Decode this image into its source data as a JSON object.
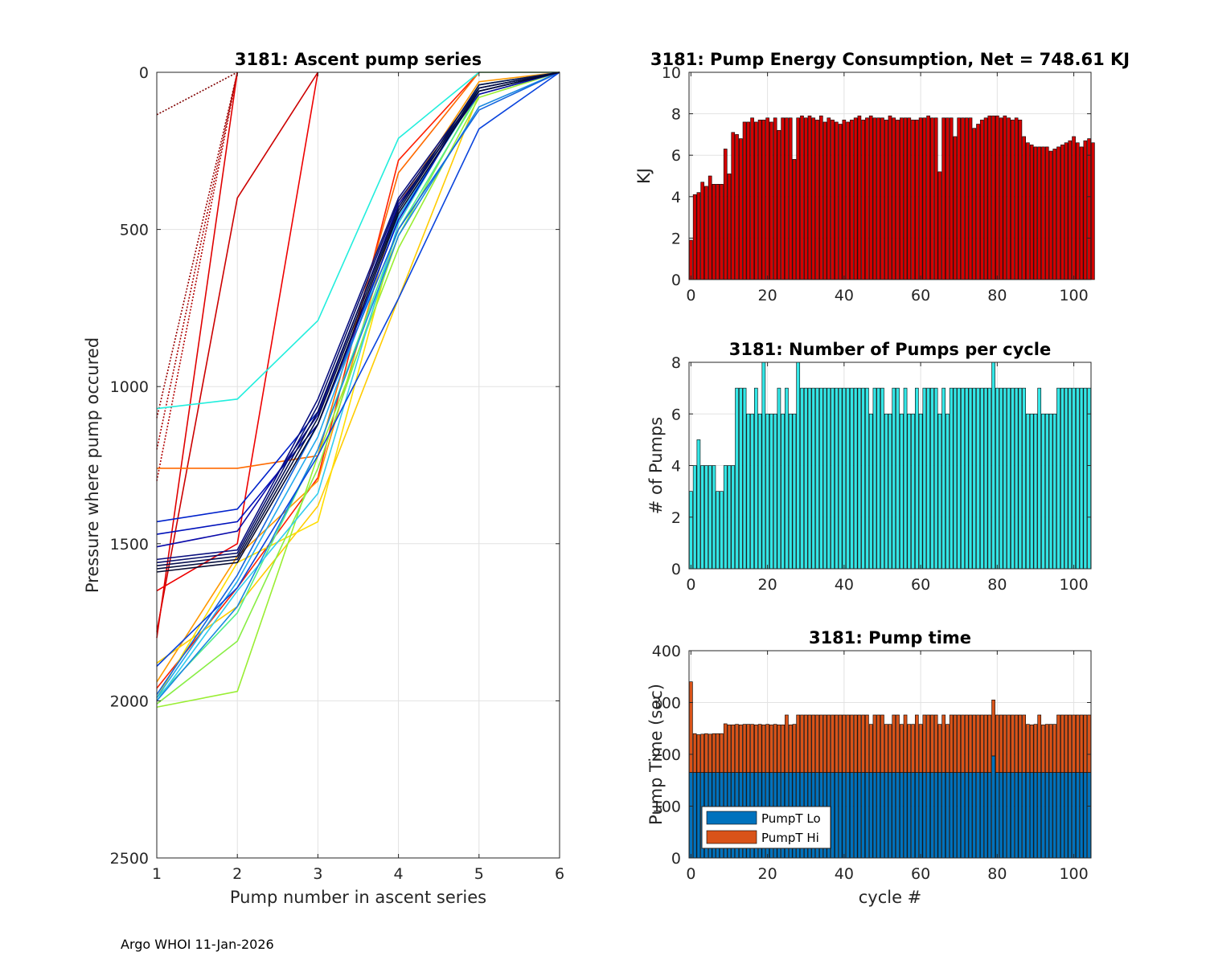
{
  "footer": "Argo WHOI 11-Jan-2026",
  "chart_data": [
    {
      "type": "line",
      "title": "3181: Ascent pump series",
      "xlabel": "Pump number in ascent series",
      "ylabel": "Pressure where pump occured",
      "xlim": [
        1,
        6
      ],
      "ylim": [
        0,
        2500
      ],
      "y_reversed": true,
      "xticks": [
        "1",
        "2",
        "3",
        "4",
        "5",
        "6"
      ],
      "yticks": [
        "0",
        "500",
        "1000",
        "1500",
        "2000",
        "2500"
      ],
      "series_description": "One line per cycle (~105 cycles), colored by cycle from dark red (early) through orange, yellow, green, cyan to dark blue (late); dotted segments where pump is at/near surface",
      "series": [
        {
          "name": "cycle 0",
          "color": "#800000",
          "values": [
            135,
            0,
            null,
            null,
            null,
            null
          ],
          "style": "dotted"
        },
        {
          "name": "cycle 1",
          "color": "#990000",
          "values": [
            1100,
            0,
            null,
            null,
            null,
            null
          ],
          "style": "dotted"
        },
        {
          "name": "cycle 2",
          "color": "#aa0000",
          "values": [
            1200,
            0,
            null,
            null,
            null,
            null
          ],
          "style": "dotted"
        },
        {
          "name": "cycle 3",
          "color": "#b30000",
          "values": [
            1300,
            0,
            null,
            null,
            null,
            null
          ],
          "style": "dotted"
        },
        {
          "name": "cycle 4",
          "color": "#cc0000",
          "values": [
            1780,
            400,
            0,
            null,
            null,
            null
          ],
          "style": "solid"
        },
        {
          "name": "cycle 5",
          "color": "#e00000",
          "values": [
            1800,
            0,
            null,
            null,
            null,
            null
          ],
          "style": "solid"
        },
        {
          "name": "cycle 6",
          "color": "#ee0000",
          "values": [
            1650,
            1500,
            0,
            null,
            null,
            null
          ],
          "style": "solid"
        },
        {
          "name": "cycle 8",
          "color": "#ff2000",
          "values": [
            1960,
            1640,
            1290,
            280,
            0,
            0
          ],
          "style": "solid"
        },
        {
          "name": "cycle 10",
          "color": "#ff6a00",
          "values": [
            1260,
            1260,
            1220,
            320,
            0,
            0
          ],
          "style": "solid"
        },
        {
          "name": "cycle 12",
          "color": "#ff9900",
          "values": [
            1940,
            1540,
            1300,
            420,
            30,
            0
          ],
          "style": "solid"
        },
        {
          "name": "cycle 14",
          "color": "#ffcc00",
          "values": [
            1880,
            1700,
            1380,
            720,
            70,
            0
          ],
          "style": "solid"
        },
        {
          "name": "cycle 16",
          "color": "#ffdd00",
          "values": [
            1990,
            1560,
            1430,
            480,
            40,
            0
          ],
          "style": "solid"
        },
        {
          "name": "cycle 18",
          "color": "#99ee33",
          "values": [
            2020,
            1970,
            1220,
            560,
            80,
            0
          ],
          "style": "solid"
        },
        {
          "name": "cycle 20",
          "color": "#88ee44",
          "values": [
            2010,
            1810,
            1260,
            520,
            60,
            0
          ],
          "style": "solid"
        },
        {
          "name": "cycle 22",
          "color": "#55ee88",
          "values": [
            1990,
            1720,
            1200,
            500,
            70,
            0
          ],
          "style": "solid"
        },
        {
          "name": "cycle 26",
          "color": "#22eedd",
          "values": [
            1070,
            1040,
            790,
            210,
            0,
            0
          ],
          "style": "solid"
        },
        {
          "name": "cycle 30",
          "color": "#33ccee",
          "values": [
            2000,
            1650,
            1340,
            480,
            40,
            0
          ],
          "style": "solid"
        },
        {
          "name": "cycle 36",
          "color": "#22aaee",
          "values": [
            1990,
            1620,
            1160,
            460,
            60,
            0
          ],
          "style": "solid"
        },
        {
          "name": "cycle 42",
          "color": "#1a88e0",
          "values": [
            2000,
            1700,
            1200,
            520,
            110,
            0
          ],
          "style": "solid"
        },
        {
          "name": "cycle 48",
          "color": "#1466dd",
          "values": [
            1980,
            1600,
            1120,
            500,
            120,
            0
          ],
          "style": "solid"
        },
        {
          "name": "cycle 54",
          "color": "#0a44dd",
          "values": [
            1890,
            1640,
            1220,
            720,
            180,
            0
          ],
          "style": "solid"
        },
        {
          "name": "cycle 60",
          "color": "#0022cc",
          "values": [
            1430,
            1390,
            1080,
            430,
            60,
            0
          ],
          "style": "solid"
        },
        {
          "name": "cycle 66",
          "color": "#0011bb",
          "values": [
            1470,
            1430,
            1120,
            470,
            50,
            0
          ],
          "style": "solid"
        },
        {
          "name": "cycle 72",
          "color": "#0a0aaa",
          "values": [
            1510,
            1460,
            1090,
            420,
            70,
            0
          ],
          "style": "solid"
        },
        {
          "name": "cycle 78",
          "color": "#0a1080",
          "values": [
            1550,
            1520,
            1040,
            400,
            50,
            0
          ],
          "style": "solid"
        },
        {
          "name": "cycle 84",
          "color": "#08106a",
          "values": [
            1560,
            1530,
            1060,
            410,
            60,
            0
          ],
          "style": "solid"
        },
        {
          "name": "cycle 90",
          "color": "#071050",
          "values": [
            1570,
            1540,
            1080,
            430,
            40,
            0
          ],
          "style": "solid"
        },
        {
          "name": "cycle 96",
          "color": "#061040",
          "values": [
            1580,
            1550,
            1100,
            440,
            50,
            0
          ],
          "style": "solid"
        },
        {
          "name": "cycle 102",
          "color": "#050a30",
          "values": [
            1590,
            1560,
            1120,
            450,
            60,
            0
          ],
          "style": "solid"
        }
      ]
    },
    {
      "type": "bar",
      "title": "3181: Pump Energy Consumption,  Net = 748.61 KJ",
      "xlabel": "",
      "ylabel": "KJ",
      "xlim": [
        -0.5,
        104.5
      ],
      "ylim": [
        0,
        10
      ],
      "xticks": [
        "0",
        "20",
        "40",
        "60",
        "80",
        "100"
      ],
      "yticks": [
        "0",
        "2",
        "4",
        "6",
        "8",
        "10"
      ],
      "bar_color": "#d40000",
      "x_start": 0,
      "values": [
        1.9,
        4.1,
        4.2,
        4.7,
        4.5,
        5.0,
        4.6,
        4.6,
        4.6,
        6.3,
        5.1,
        7.1,
        7.0,
        6.8,
        7.6,
        7.6,
        7.8,
        7.6,
        7.7,
        7.7,
        7.8,
        7.6,
        7.8,
        7.2,
        7.8,
        7.8,
        7.8,
        5.8,
        7.8,
        7.9,
        7.8,
        7.9,
        7.8,
        7.7,
        7.9,
        7.6,
        7.8,
        7.7,
        7.6,
        7.5,
        7.7,
        7.6,
        7.7,
        7.8,
        7.9,
        7.7,
        7.8,
        7.9,
        7.8,
        7.8,
        7.8,
        7.7,
        7.9,
        7.8,
        7.7,
        7.8,
        7.8,
        7.8,
        7.7,
        7.7,
        7.8,
        7.8,
        7.9,
        7.8,
        7.8,
        5.2,
        7.8,
        7.8,
        7.8,
        6.9,
        7.8,
        7.8,
        7.8,
        7.8,
        7.3,
        7.5,
        7.7,
        7.8,
        7.9,
        7.9,
        7.9,
        7.8,
        7.9,
        7.8,
        7.7,
        7.8,
        7.7,
        6.9,
        6.6,
        6.5,
        6.4,
        6.4,
        6.4,
        6.4,
        6.2,
        6.3,
        6.4,
        6.5,
        6.6,
        6.7,
        6.9,
        6.6,
        6.4,
        6.7,
        6.8,
        6.6
      ]
    },
    {
      "type": "bar",
      "title": "3181: Number of Pumps per cycle",
      "xlabel": "",
      "ylabel": "# of Pumps",
      "xlim": [
        -0.5,
        104.5
      ],
      "ylim": [
        0,
        8
      ],
      "xticks": [
        "0",
        "20",
        "40",
        "60",
        "80",
        "100"
      ],
      "yticks": [
        "0",
        "2",
        "4",
        "6",
        "8"
      ],
      "bar_color": "#33e6e6",
      "x_start": 0,
      "values": [
        3,
        4,
        5,
        4,
        4,
        4,
        4,
        3,
        3,
        4,
        4,
        4,
        7,
        7,
        7,
        6,
        6,
        7,
        6,
        8,
        6,
        6,
        6,
        7,
        6,
        7,
        6,
        6,
        8,
        7,
        7,
        7,
        7,
        7,
        7,
        7,
        7,
        7,
        7,
        7,
        7,
        7,
        7,
        7,
        7,
        7,
        7,
        6,
        7,
        7,
        7,
        6,
        6,
        7,
        7,
        6,
        7,
        6,
        6,
        7,
        6,
        7,
        7,
        7,
        7,
        6,
        7,
        6,
        7,
        7,
        7,
        7,
        7,
        7,
        7,
        7,
        7,
        7,
        7,
        8,
        7,
        7,
        7,
        7,
        7,
        7,
        7,
        7,
        6,
        6,
        6,
        7,
        6,
        6,
        6,
        6,
        7,
        7,
        7,
        7,
        7,
        7,
        7,
        7,
        7
      ]
    },
    {
      "type": "bar",
      "title": "3181: Pump time",
      "xlabel": "cycle #",
      "ylabel": "Pump Time (sec)",
      "xlim": [
        -0.5,
        104.5
      ],
      "ylim": [
        0,
        400
      ],
      "xticks": [
        "0",
        "20",
        "40",
        "60",
        "80",
        "100"
      ],
      "yticks": [
        "0",
        "100",
        "200",
        "300",
        "400"
      ],
      "stacked": true,
      "legend_position": "bottom-left",
      "x_start": 0,
      "series": [
        {
          "name": "PumpT Lo",
          "color": "#0072bd",
          "values": [
            165,
            165,
            165,
            165,
            165,
            165,
            165,
            165,
            165,
            165,
            165,
            165,
            165,
            165,
            165,
            165,
            165,
            165,
            165,
            165,
            165,
            165,
            165,
            165,
            165,
            165,
            165,
            165,
            165,
            165,
            165,
            165,
            165,
            165,
            165,
            165,
            165,
            165,
            165,
            165,
            165,
            165,
            165,
            165,
            165,
            165,
            165,
            165,
            165,
            165,
            165,
            165,
            165,
            165,
            165,
            165,
            165,
            165,
            165,
            165,
            165,
            165,
            165,
            165,
            165,
            165,
            165,
            165,
            165,
            165,
            165,
            165,
            165,
            165,
            165,
            165,
            165,
            165,
            165,
            197,
            165,
            165,
            165,
            165,
            165,
            165,
            165,
            165,
            165,
            165,
            165,
            165,
            165,
            165,
            165,
            165,
            165,
            165,
            165,
            165,
            165,
            165,
            165,
            165,
            165
          ]
        },
        {
          "name": "PumpT Hi",
          "color": "#d95319",
          "values": [
            175,
            75,
            73,
            74,
            75,
            74,
            75,
            75,
            75,
            94,
            92,
            92,
            93,
            92,
            93,
            93,
            93,
            92,
            93,
            92,
            93,
            92,
            93,
            92,
            92,
            111,
            92,
            93,
            111,
            111,
            111,
            111,
            111,
            111,
            111,
            111,
            111,
            111,
            111,
            111,
            111,
            111,
            111,
            111,
            111,
            111,
            111,
            93,
            111,
            111,
            111,
            93,
            93,
            111,
            111,
            93,
            111,
            93,
            93,
            111,
            93,
            111,
            111,
            111,
            111,
            93,
            111,
            93,
            111,
            111,
            111,
            111,
            111,
            111,
            111,
            111,
            111,
            111,
            111,
            108,
            111,
            111,
            111,
            111,
            111,
            111,
            111,
            111,
            93,
            92,
            93,
            111,
            92,
            93,
            93,
            93,
            111,
            111,
            111,
            111,
            111,
            111,
            111,
            111,
            111
          ]
        }
      ]
    }
  ]
}
